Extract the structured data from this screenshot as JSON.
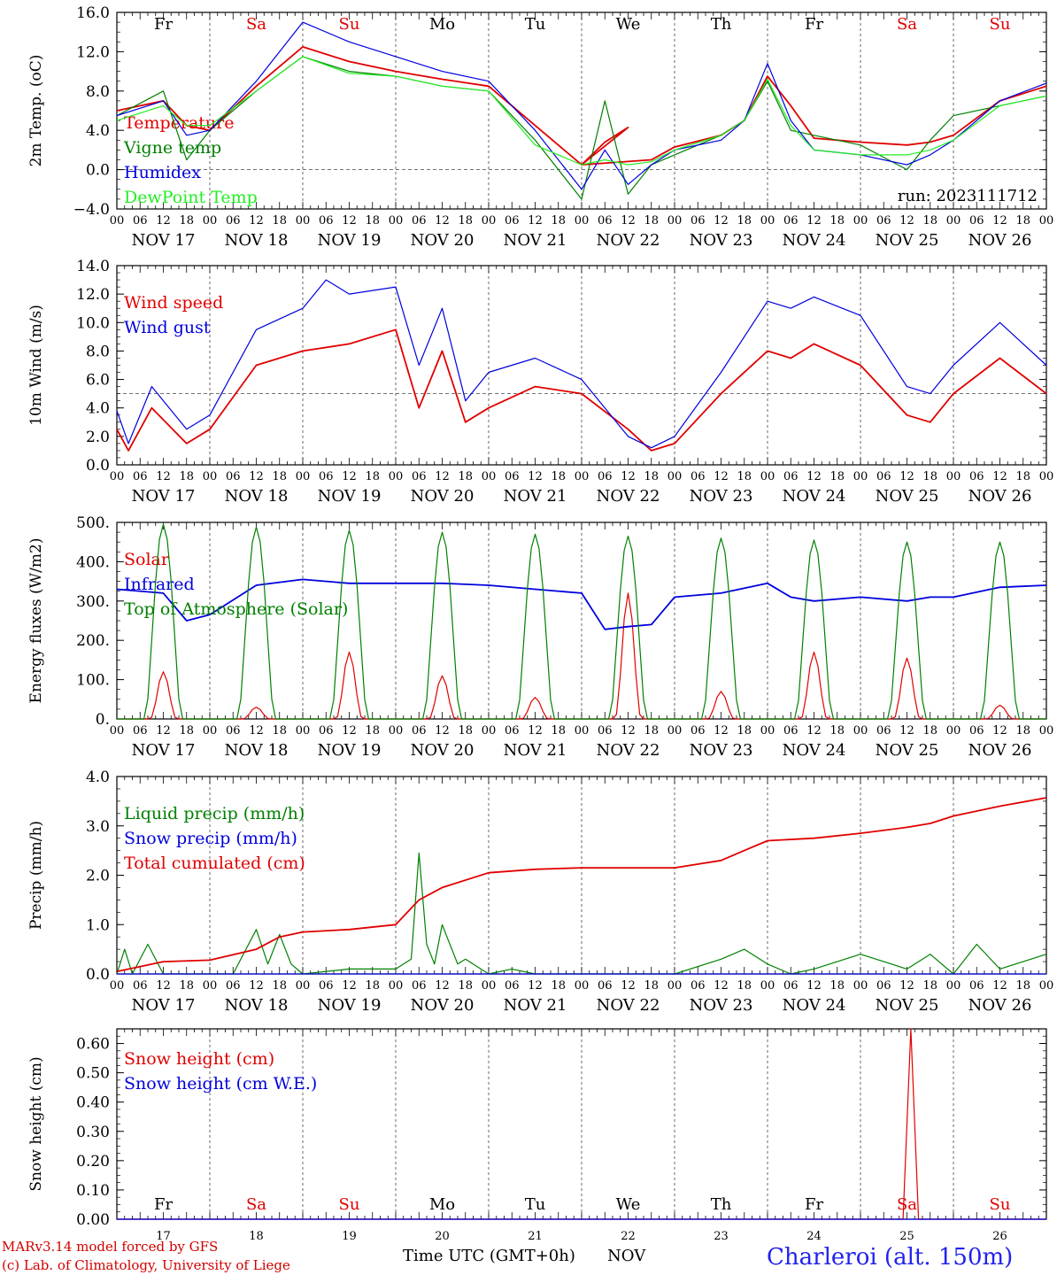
{
  "footer": {
    "model": "MARv3.14 model forced by GFS",
    "copyright": "(c) Lab. of Climatology, University of Liege",
    "time_axis": "Time UTC (GMT+0h)",
    "month": "NOV",
    "station": "Charleroi (alt. 150m)"
  },
  "colors": {
    "red": "#e00000",
    "green": "#008000",
    "blue": "#0000dd",
    "lightgreen": "#22ee22",
    "weekend": "#e00000"
  },
  "time_axis": {
    "hour_ticks": [
      "00",
      "06",
      "12",
      "18"
    ],
    "dates": [
      "NOV 17",
      "NOV 18",
      "NOV 19",
      "NOV 20",
      "NOV 21",
      "NOV 22",
      "NOV 23",
      "NOV 24",
      "NOV 25",
      "NOV 26"
    ],
    "days": [
      {
        "label": "Fr",
        "weekend": false
      },
      {
        "label": "Sa",
        "weekend": true
      },
      {
        "label": "Su",
        "weekend": true
      },
      {
        "label": "Mo",
        "weekend": false
      },
      {
        "label": "Tu",
        "weekend": false
      },
      {
        "label": "We",
        "weekend": false
      },
      {
        "label": "Th",
        "weekend": false
      },
      {
        "label": "Fr",
        "weekend": false
      },
      {
        "label": "Sa",
        "weekend": true
      },
      {
        "label": "Su",
        "weekend": true
      }
    ],
    "day_numbers": [
      "17",
      "18",
      "19",
      "20",
      "21",
      "22",
      "23",
      "24",
      "25",
      "26"
    ],
    "x_range_hours": [
      0,
      240
    ]
  },
  "chart_data": [
    {
      "type": "line",
      "ylabel": "2m Temp. (oC)",
      "ylim": [
        -4,
        16
      ],
      "yticks": [
        "16.0",
        "12.0",
        "8.0",
        "4.0",
        "0.0",
        "−4.0"
      ],
      "ytick_values": [
        16,
        12,
        8,
        4,
        0,
        -4
      ],
      "reference_line": 0,
      "annotation": "run: 2023111712",
      "series": [
        {
          "name": "Temperature",
          "color": "red",
          "x": [
            0,
            12,
            18,
            24,
            36,
            48,
            60,
            72,
            84,
            96,
            108,
            120,
            132,
            126,
            120,
            138,
            144,
            156,
            162,
            168,
            174,
            180,
            192,
            204,
            210,
            216,
            228,
            240
          ],
          "y": [
            6.0,
            7.0,
            4.5,
            4.0,
            8.5,
            12.5,
            11.0,
            10.0,
            9.2,
            8.5,
            4.5,
            0.5,
            4.3,
            2.8,
            0.5,
            1.0,
            2.3,
            3.5,
            5.0,
            9.5,
            6.5,
            3.2,
            2.8,
            2.5,
            2.8,
            3.5,
            7.0,
            8.5
          ]
        },
        {
          "name": "Vigne temp",
          "color": "green",
          "x": [
            0,
            12,
            18,
            24,
            36,
            48,
            60,
            72,
            84,
            96,
            108,
            120,
            126,
            132,
            138,
            144,
            156,
            162,
            168,
            174,
            180,
            192,
            204,
            210,
            216,
            228,
            240
          ],
          "y": [
            5.5,
            8.0,
            1.0,
            4.0,
            8.0,
            11.5,
            10.0,
            9.5,
            8.5,
            8.0,
            3.0,
            -3.0,
            7.0,
            -2.5,
            0.5,
            1.5,
            3.5,
            5.0,
            9.0,
            4.0,
            3.5,
            2.5,
            0.0,
            3.0,
            5.5,
            6.5,
            7.5
          ]
        },
        {
          "name": "Humidex",
          "color": "blue",
          "x": [
            0,
            12,
            18,
            24,
            36,
            48,
            60,
            72,
            84,
            96,
            108,
            120,
            126,
            132,
            138,
            144,
            156,
            162,
            168,
            174,
            180,
            192,
            204,
            210,
            216,
            228,
            240
          ],
          "y": [
            5.5,
            7.0,
            3.5,
            4.0,
            9.0,
            15.0,
            13.0,
            11.5,
            10.0,
            9.0,
            4.0,
            -2.0,
            2.0,
            -1.5,
            0.5,
            2.0,
            3.0,
            5.0,
            10.8,
            5.0,
            2.0,
            1.5,
            0.5,
            1.5,
            3.0,
            7.0,
            8.8
          ]
        },
        {
          "name": "DewPoint Temp",
          "color": "lightgreen",
          "x": [
            0,
            12,
            18,
            24,
            36,
            48,
            60,
            72,
            84,
            96,
            108,
            120,
            126,
            132,
            138,
            144,
            156,
            162,
            168,
            174,
            180,
            192,
            204,
            210,
            216,
            228,
            240
          ],
          "y": [
            5.0,
            6.5,
            4.5,
            4.5,
            8.0,
            11.5,
            9.8,
            9.5,
            8.5,
            8.0,
            2.5,
            0.5,
            1.0,
            0.5,
            0.8,
            2.0,
            3.5,
            5.0,
            9.2,
            4.5,
            2.0,
            1.5,
            1.5,
            2.0,
            3.0,
            6.5,
            7.5
          ]
        }
      ]
    },
    {
      "type": "line",
      "ylabel": "10m Wind (m/s)",
      "ylim": [
        0,
        14
      ],
      "yticks": [
        "14.0",
        "12.0",
        "10.0",
        "8.0",
        "6.0",
        "4.0",
        "2.0",
        "0.0"
      ],
      "ytick_values": [
        14,
        12,
        10,
        8,
        6,
        4,
        2,
        0
      ],
      "reference_line": 5,
      "series": [
        {
          "name": "Wind speed",
          "color": "red",
          "x": [
            0,
            3,
            9,
            18,
            24,
            36,
            48,
            60,
            72,
            78,
            84,
            90,
            96,
            108,
            120,
            132,
            138,
            144,
            156,
            168,
            174,
            180,
            192,
            204,
            210,
            216,
            228,
            240
          ],
          "y": [
            2.5,
            1.0,
            4.0,
            1.5,
            2.5,
            7.0,
            8.0,
            8.5,
            9.5,
            4.0,
            8.0,
            3.0,
            4.0,
            5.5,
            5.0,
            2.5,
            1.0,
            1.5,
            5.0,
            8.0,
            7.5,
            8.5,
            7.0,
            3.5,
            3.0,
            5.0,
            7.5,
            5.0
          ]
        },
        {
          "name": "Wind gust",
          "color": "blue",
          "x": [
            0,
            3,
            9,
            18,
            24,
            36,
            48,
            54,
            60,
            72,
            78,
            84,
            90,
            96,
            108,
            120,
            132,
            138,
            144,
            156,
            168,
            174,
            180,
            192,
            204,
            210,
            216,
            228,
            240
          ],
          "y": [
            3.8,
            1.5,
            5.5,
            2.5,
            3.5,
            9.5,
            11.0,
            13.0,
            12.0,
            12.5,
            7.0,
            11.0,
            4.5,
            6.5,
            7.5,
            6.0,
            2.0,
            1.2,
            2.0,
            6.5,
            11.5,
            11.0,
            11.8,
            10.5,
            5.5,
            5.0,
            7.0,
            10.0,
            7.0
          ]
        }
      ]
    },
    {
      "type": "line",
      "ylabel": "Energy fluxes (W/m2)",
      "ylim": [
        0,
        500
      ],
      "yticks": [
        "500.",
        "400.",
        "300.",
        "200.",
        "100.",
        "0."
      ],
      "ytick_values": [
        500,
        400,
        300,
        200,
        100,
        0
      ],
      "series": [
        {
          "name": "Solar",
          "color": "red",
          "day_peaks": [
            120,
            30,
            170,
            110,
            55,
            320,
            70,
            170,
            155,
            35
          ]
        },
        {
          "name": "Infrared",
          "color": "blue",
          "x": [
            0,
            12,
            18,
            24,
            36,
            48,
            60,
            72,
            84,
            96,
            108,
            120,
            126,
            132,
            138,
            144,
            156,
            168,
            174,
            180,
            192,
            204,
            210,
            216,
            228,
            240
          ],
          "y": [
            330,
            320,
            250,
            265,
            340,
            355,
            345,
            345,
            345,
            340,
            330,
            320,
            228,
            235,
            240,
            310,
            320,
            345,
            310,
            300,
            310,
            300,
            310,
            310,
            335,
            340
          ]
        },
        {
          "name": "Top of Atmosphere (Solar)",
          "color": "green",
          "day_peaks": [
            495,
            488,
            480,
            475,
            470,
            465,
            460,
            455,
            450,
            450
          ]
        }
      ]
    },
    {
      "type": "line",
      "ylabel": "Precip (mm/h)",
      "ylim": [
        0,
        4
      ],
      "yticks": [
        "4.0",
        "3.0",
        "2.0",
        "1.0",
        "0.0"
      ],
      "ytick_values": [
        4,
        3,
        2,
        1,
        0
      ],
      "series": [
        {
          "name": "Liquid precip (mm/h)",
          "color": "green",
          "x": [
            0,
            2,
            4,
            8,
            12,
            18,
            24,
            30,
            36,
            39,
            42,
            45,
            48,
            60,
            72,
            76,
            78,
            80,
            82,
            84,
            88,
            90,
            96,
            102,
            108,
            120,
            132,
            144,
            156,
            162,
            168,
            174,
            180,
            192,
            204,
            210,
            216,
            222,
            228,
            240
          ],
          "y": [
            0.0,
            0.5,
            0.0,
            0.6,
            0.0,
            0.0,
            0.0,
            0.0,
            0.9,
            0.2,
            0.8,
            0.2,
            0.0,
            0.1,
            0.1,
            0.3,
            2.45,
            0.6,
            0.2,
            1.0,
            0.2,
            0.3,
            0.0,
            0.1,
            0.0,
            0.0,
            0.0,
            0.0,
            0.3,
            0.5,
            0.2,
            0.0,
            0.1,
            0.4,
            0.1,
            0.4,
            0.0,
            0.6,
            0.1,
            0.4
          ]
        },
        {
          "name": "Snow precip (mm/h)",
          "color": "blue",
          "x": [
            0,
            240
          ],
          "y": [
            0,
            0
          ]
        },
        {
          "name": "Total cumulated (cm)",
          "color": "red",
          "x": [
            0,
            12,
            24,
            36,
            42,
            48,
            60,
            72,
            78,
            84,
            96,
            108,
            120,
            144,
            156,
            162,
            168,
            180,
            192,
            204,
            210,
            216,
            228,
            240
          ],
          "y": [
            0.05,
            0.25,
            0.28,
            0.5,
            0.75,
            0.85,
            0.9,
            1.0,
            1.5,
            1.75,
            2.05,
            2.12,
            2.15,
            2.15,
            2.3,
            2.5,
            2.7,
            2.75,
            2.85,
            2.97,
            3.05,
            3.2,
            3.4,
            3.57
          ]
        }
      ]
    },
    {
      "type": "line",
      "ylabel": "Snow height (cm)",
      "ylim": [
        0,
        0.65
      ],
      "yticks": [
        "0.60",
        "0.50",
        "0.40",
        "0.30",
        "0.20",
        "0.10",
        "0.00"
      ],
      "ytick_values": [
        0.6,
        0.5,
        0.4,
        0.3,
        0.2,
        0.1,
        0.0
      ],
      "series": [
        {
          "name": "Snow height (cm)",
          "color": "red",
          "x": [
            0,
            203,
            205,
            207,
            240
          ],
          "y": [
            0,
            0,
            0.65,
            0,
            0
          ]
        },
        {
          "name": "Snow height (cm W.E.)",
          "color": "blue",
          "x": [
            0,
            240
          ],
          "y": [
            0,
            0
          ]
        }
      ]
    }
  ]
}
